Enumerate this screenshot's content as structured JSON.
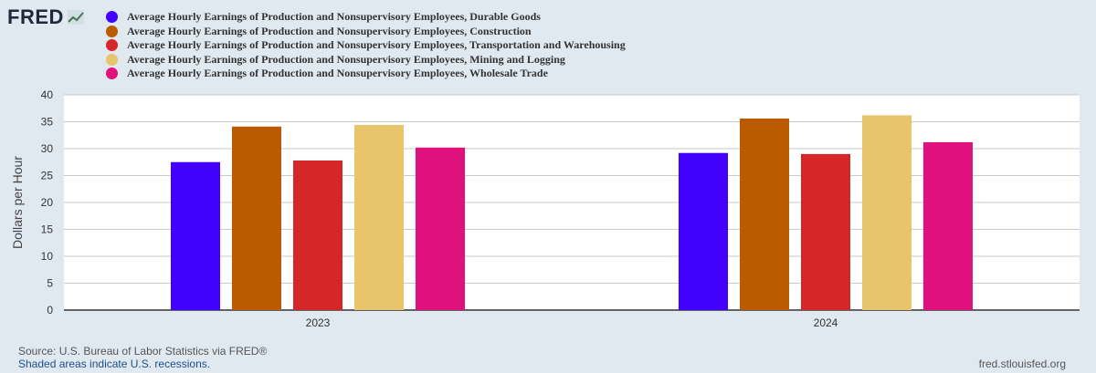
{
  "header": {
    "logo_text": "FRED"
  },
  "chart_data": {
    "type": "bar",
    "categories": [
      "2023",
      "2024"
    ],
    "ylabel": "Dollars per Hour",
    "ylim": [
      0,
      40
    ],
    "yticks": [
      0,
      5,
      10,
      15,
      20,
      25,
      30,
      35,
      40
    ],
    "grid": true,
    "legend_position": "top-left",
    "series": [
      {
        "name": "Average Hourly Earnings of Production and Nonsupervisory Employees, Durable Goods",
        "color": "#4200ff",
        "values": [
          27.5,
          29.2
        ]
      },
      {
        "name": "Average Hourly Earnings of Production and Nonsupervisory Employees, Construction",
        "color": "#bb5a00",
        "values": [
          34.1,
          35.6
        ]
      },
      {
        "name": "Average Hourly Earnings of Production and Nonsupervisory Employees, Transportation and Warehousing",
        "color": "#d62728",
        "values": [
          27.8,
          29.0
        ]
      },
      {
        "name": "Average Hourly Earnings of Production and Nonsupervisory Employees, Mining and Logging",
        "color": "#e8c46a",
        "values": [
          34.4,
          36.2
        ]
      },
      {
        "name": "Average Hourly Earnings of Production and Nonsupervisory Employees, Wholesale Trade",
        "color": "#e0117c",
        "values": [
          30.2,
          31.2
        ]
      }
    ]
  },
  "footer": {
    "source": "Source: U.S. Bureau of Labor Statistics via FRED®",
    "shaded_note": "Shaded areas indicate U.S. recessions.",
    "site": "fred.stlouisfed.org"
  }
}
